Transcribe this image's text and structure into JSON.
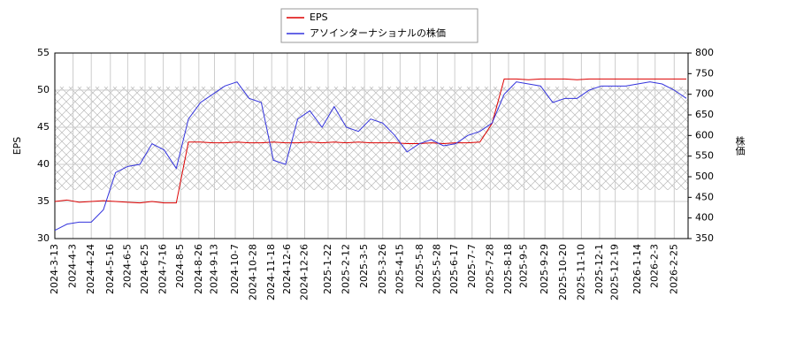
{
  "chart_data": {
    "type": "line",
    "x": [
      "2024-3-13",
      "2024-3-27",
      "2024-4-10",
      "2024-4-24",
      "2024-5-8",
      "2024-5-22",
      "2024-6-5",
      "2024-6-19",
      "2024-7-3",
      "2024-7-17",
      "2024-7-31",
      "2024-8-14",
      "2024-8-28",
      "2024-9-11",
      "2024-9-25",
      "2024-10-9",
      "2024-10-23",
      "2024-11-6",
      "2024-11-20",
      "2024-12-4",
      "2024-12-18",
      "2025-1-1",
      "2025-1-15",
      "2025-1-29",
      "2025-2-12",
      "2025-2-26",
      "2025-3-12",
      "2025-3-26",
      "2025-4-9",
      "2025-4-23",
      "2025-5-7",
      "2025-5-21",
      "2025-6-4",
      "2025-6-18",
      "2025-7-2",
      "2025-7-16",
      "2025-7-30",
      "2025-8-13",
      "2025-8-27",
      "2025-9-10",
      "2025-9-24",
      "2025-10-8",
      "2025-10-22",
      "2025-11-5",
      "2025-11-19",
      "2025-12-3",
      "2025-12-17",
      "2025-12-31",
      "2026-1-14",
      "2026-1-28",
      "2026-2-11",
      "2026-2-25",
      "2026-3-11"
    ],
    "series": [
      {
        "name": "EPS",
        "color": "#dd0000",
        "axis": "y",
        "values": [
          35,
          35.2,
          34.9,
          35,
          35.1,
          35,
          34.9,
          34.8,
          35,
          34.8,
          34.8,
          43,
          43,
          42.9,
          42.9,
          43,
          42.9,
          42.9,
          43,
          42.9,
          42.9,
          43,
          42.9,
          43,
          42.9,
          43,
          42.9,
          42.9,
          42.9,
          42.8,
          42.8,
          42.9,
          42.8,
          42.9,
          42.9,
          43,
          45.5,
          51.5,
          51.5,
          51.4,
          51.5,
          51.5,
          51.5,
          51.4,
          51.5,
          51.5,
          51.5,
          51.5,
          51.5,
          51.5,
          51.5,
          51.5,
          51.5
        ]
      },
      {
        "name": "アソインターナショナルの株価",
        "color": "#3333dd",
        "axis": "y2",
        "values": [
          370,
          385,
          390,
          390,
          420,
          510,
          525,
          530,
          580,
          565,
          520,
          640,
          680,
          700,
          720,
          730,
          690,
          680,
          540,
          530,
          640,
          660,
          620,
          670,
          620,
          610,
          640,
          630,
          600,
          560,
          580,
          590,
          575,
          580,
          600,
          610,
          630,
          700,
          730,
          725,
          720,
          680,
          690,
          690,
          710,
          720,
          720,
          720,
          725,
          730,
          725,
          710,
          690
        ]
      }
    ],
    "xlim": [
      "2024-3-13",
      "2026-3-13"
    ],
    "xticks": [
      "2024-3-13",
      "2024-4-3",
      "2024-4-24",
      "2024-5-16",
      "2024-6-5",
      "2024-6-25",
      "2024-7-16",
      "2024-8-5",
      "2024-8-26",
      "2024-9-13",
      "2024-10-7",
      "2024-10-28",
      "2024-11-18",
      "2024-12-6",
      "2024-12-26",
      "2025-1-22",
      "2025-2-12",
      "2025-3-5",
      "2025-3-26",
      "2025-4-15",
      "2025-5-8",
      "2025-5-28",
      "2025-6-17",
      "2025-7-7",
      "2025-7-28",
      "2025-8-18",
      "2025-9-5",
      "2025-9-29",
      "2025-10-20",
      "2025-11-10",
      "2025-12-1",
      "2025-12-19",
      "2026-1-14",
      "2026-2-3",
      "2026-2-25"
    ],
    "ylim": [
      30,
      55
    ],
    "yticks": [
      30,
      35,
      40,
      45,
      50,
      55
    ],
    "y2lim": [
      350,
      800
    ],
    "y2ticks": [
      350,
      400,
      450,
      500,
      550,
      600,
      650,
      700,
      750,
      800
    ],
    "ylabel": "EPS",
    "y2label": "株価",
    "grid": true
  }
}
